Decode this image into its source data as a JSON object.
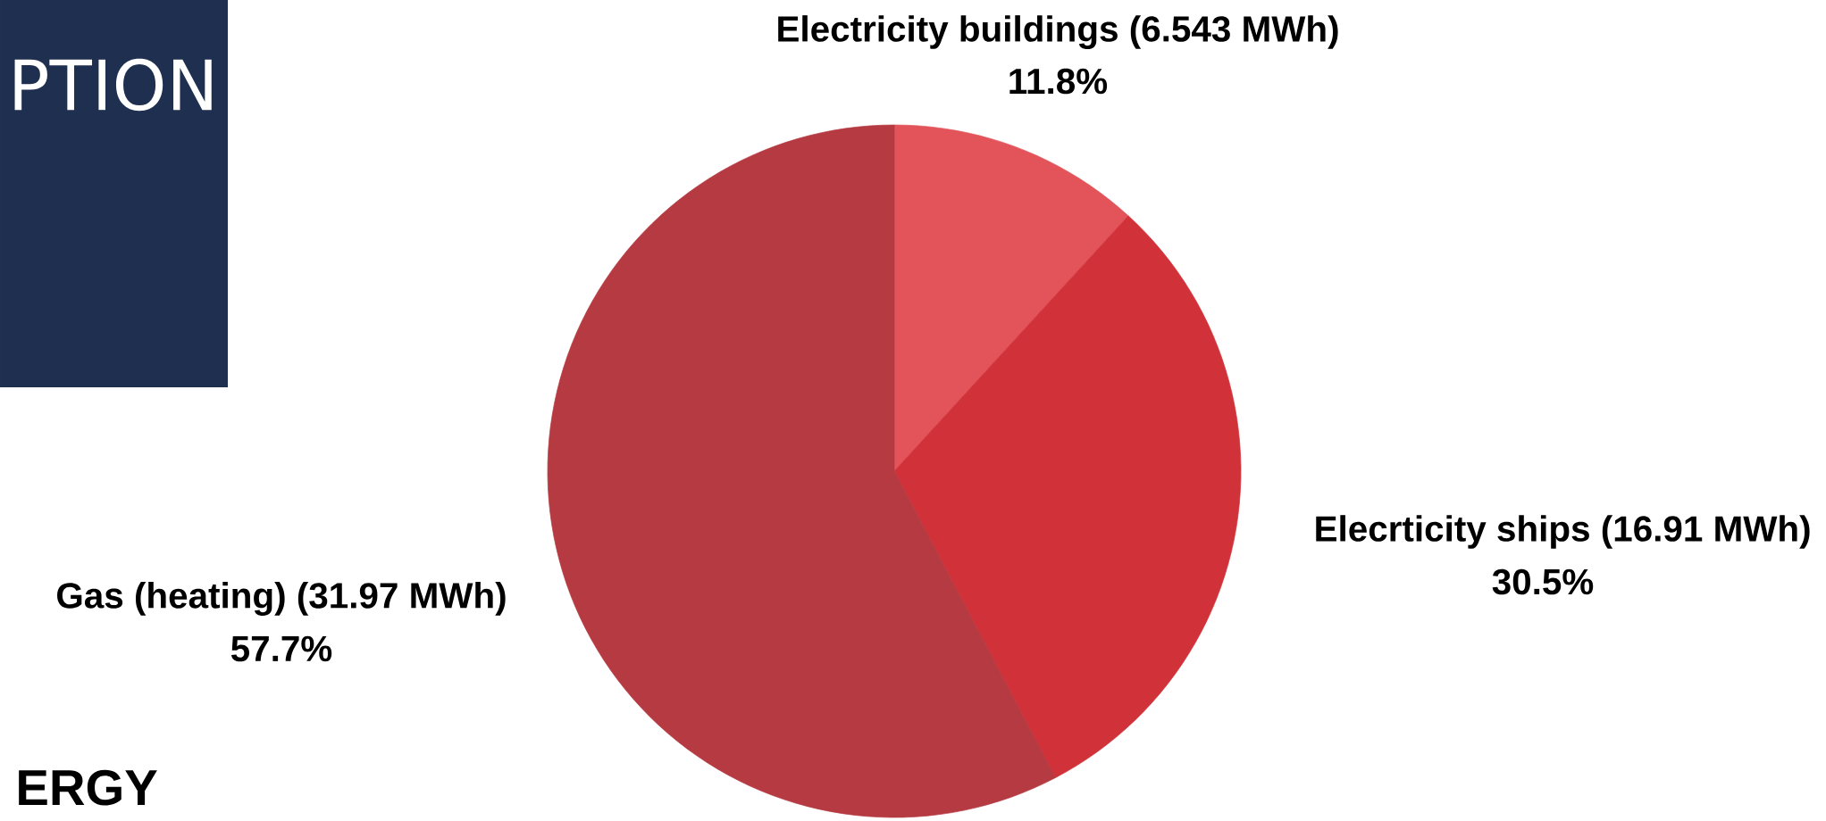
{
  "chart_data": {
    "type": "pie",
    "categories": [
      "Electricity buildings (6.543 MWh)",
      "Elecrticity ships (16.91 MWh)",
      "Gas (heating) (31.97 MWh)"
    ],
    "values": [
      11.8,
      30.5,
      57.7
    ],
    "value_labels": [
      "11.8%",
      "30.5%",
      "57.7%"
    ],
    "colors": [
      "#e2545a",
      "#d13239",
      "#b53a41"
    ],
    "annotations": [
      "PTION",
      "ERGY"
    ]
  }
}
